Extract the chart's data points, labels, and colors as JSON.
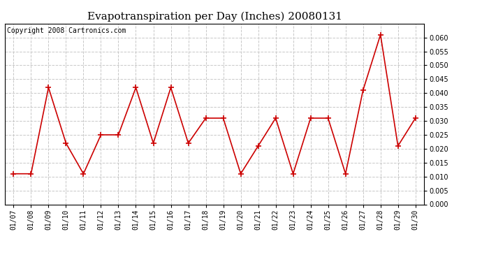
{
  "title": "Evapotranspiration per Day (Inches) 20080131",
  "copyright": "Copyright 2008 Cartronics.com",
  "dates": [
    "01/07",
    "01/08",
    "01/09",
    "01/10",
    "01/11",
    "01/12",
    "01/13",
    "01/14",
    "01/15",
    "01/16",
    "01/17",
    "01/18",
    "01/19",
    "01/20",
    "01/21",
    "01/22",
    "01/23",
    "01/24",
    "01/25",
    "01/26",
    "01/27",
    "01/28",
    "01/29",
    "01/30"
  ],
  "values": [
    0.011,
    0.011,
    0.042,
    0.022,
    0.011,
    0.025,
    0.025,
    0.042,
    0.022,
    0.042,
    0.022,
    0.031,
    0.031,
    0.011,
    0.021,
    0.031,
    0.011,
    0.031,
    0.031,
    0.011,
    0.041,
    0.061,
    0.021,
    0.031
  ],
  "line_color": "#cc0000",
  "marker": "+",
  "marker_size": 6,
  "marker_linewidth": 1.2,
  "line_width": 1.2,
  "ylim": [
    0.0,
    0.065
  ],
  "yticks": [
    0.0,
    0.005,
    0.01,
    0.015,
    0.02,
    0.025,
    0.03,
    0.035,
    0.04,
    0.045,
    0.05,
    0.055,
    0.06
  ],
  "background_color": "#ffffff",
  "plot_bg_color": "#ffffff",
  "grid_color": "#c8c8c8",
  "title_fontsize": 11,
  "tick_fontsize": 7,
  "copyright_fontsize": 7,
  "copyright_font": "monospace"
}
